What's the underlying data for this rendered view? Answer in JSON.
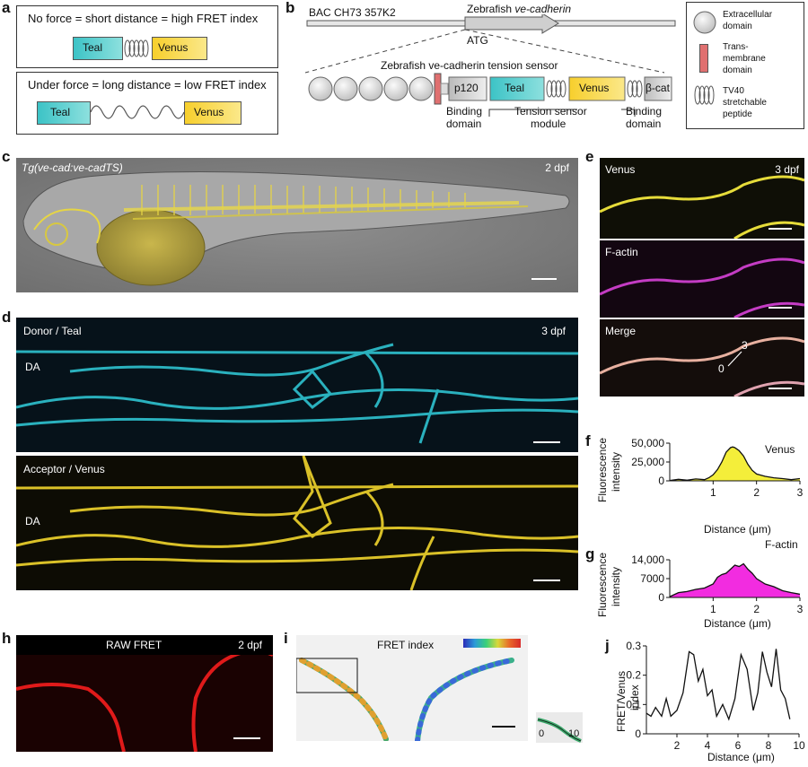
{
  "panel_labels": {
    "a": "a",
    "b": "b",
    "c": "c",
    "d": "d",
    "e": "e",
    "f": "f",
    "g": "g",
    "h": "h",
    "i": "i",
    "j": "j"
  },
  "panel_a": {
    "top_text": "No force = short distance = high FRET index",
    "bottom_text": "Under force = long distance = low FRET index",
    "teal": "Teal",
    "venus": "Venus"
  },
  "panel_b": {
    "bac_label": "BAC CH73 357K2",
    "gene_prefix": "Zebrafish ",
    "gene_name": "ve-cadherin",
    "atg": "ATG",
    "sensor_title": "Zebrafish ve-cadherin tension sensor",
    "p120": "p120",
    "teal": "Teal",
    "venus": "Venus",
    "bcat": "β-cat",
    "binding_left_1": "Binding",
    "binding_left_2": "domain",
    "module": "Tension sensor",
    "module_2": "module",
    "binding_right_1": "Binding",
    "binding_right_2": "domain"
  },
  "legend": {
    "extracellular_1": "Extracellular",
    "extracellular_2": "domain",
    "tm_1": "Trans-",
    "tm_2": "membrane",
    "tm_3": "domain",
    "tv40_1": "TV40",
    "tv40_2": "stretchable",
    "tv40_3": "peptide"
  },
  "panel_c": {
    "title": "Tg(ve-cad:ve-cadTS)",
    "stage": "2 dpf"
  },
  "panel_d": {
    "top_title": "Donor / Teal",
    "top_stage": "3 dpf",
    "top_da": "DA",
    "bottom_title": "Acceptor / Venus",
    "bottom_da": "DA"
  },
  "panel_e": {
    "venus": "Venus",
    "stage": "3 dpf",
    "factin": "F-actin",
    "merge": "Merge",
    "mark_0": "0",
    "mark_3": "3"
  },
  "panel_f": {
    "ylabel_1": "Fluorescence",
    "ylabel_2": "intensity",
    "xlabel": "Distance (μm)",
    "legend": "Venus",
    "yticks": [
      "0",
      "25,000",
      "50,000"
    ],
    "xticks": [
      "1",
      "2",
      "3"
    ]
  },
  "panel_g": {
    "ylabel_1": "Fluorescence",
    "ylabel_2": "intensity",
    "xlabel": "Distance (μm)",
    "legend": "F-actin",
    "yticks": [
      "0",
      "7000",
      "14,000"
    ],
    "xticks": [
      "1",
      "2",
      "3"
    ]
  },
  "panel_h": {
    "title": "RAW FRET",
    "stage": "2 dpf"
  },
  "panel_i": {
    "title": "FRET index",
    "inset_0": "0",
    "inset_10": "10"
  },
  "panel_j": {
    "ylabel_1": "FRET/Venus",
    "ylabel_2": "index",
    "xlabel": "Distance (μm)",
    "yticks": [
      "0",
      "0.1",
      "0.2",
      "0.3"
    ],
    "xticks": [
      "2",
      "4",
      "6",
      "8",
      "10"
    ]
  },
  "colors": {
    "teal": "#3cc3c6",
    "venus": "#f7cf2c",
    "tm": "#e07070",
    "venus_fill": "#f4ee3a",
    "factin_fill": "#f22ce0"
  },
  "chart_data": [
    {
      "type": "area",
      "ylabel": "Fluorescence intensity",
      "xlabel": "Distance (μm)",
      "series": [
        {
          "name": "Venus",
          "x": [
            0,
            0.2,
            0.4,
            0.6,
            0.8,
            0.9,
            1.0,
            1.1,
            1.2,
            1.3,
            1.4,
            1.45,
            1.5,
            1.55,
            1.6,
            1.7,
            1.8,
            1.9,
            2.0,
            2.2,
            2.4,
            2.6,
            2.8,
            3.0
          ],
          "values": [
            300,
            2000,
            800,
            2500,
            1500,
            4000,
            8000,
            15000,
            25000,
            38000,
            44000,
            45000,
            44000,
            42000,
            40000,
            33000,
            22000,
            14000,
            9000,
            6000,
            4000,
            3000,
            1500,
            3000
          ]
        }
      ],
      "xlim": [
        0,
        3
      ],
      "ylim": [
        0,
        50000
      ]
    },
    {
      "type": "area",
      "ylabel": "Fluorescence intensity",
      "xlabel": "Distance (μm)",
      "series": [
        {
          "name": "F-actin",
          "x": [
            0,
            0.2,
            0.4,
            0.6,
            0.8,
            1.0,
            1.1,
            1.2,
            1.3,
            1.4,
            1.5,
            1.6,
            1.7,
            1.8,
            1.9,
            2.0,
            2.2,
            2.4,
            2.6,
            2.8,
            3.0
          ],
          "values": [
            300,
            1800,
            2200,
            3000,
            3500,
            5000,
            7500,
            8500,
            9000,
            10500,
            12000,
            11500,
            12500,
            10500,
            9000,
            7000,
            5000,
            4000,
            2500,
            1800,
            1200
          ]
        }
      ],
      "xlim": [
        0,
        3
      ],
      "ylim": [
        0,
        14000
      ]
    },
    {
      "type": "line",
      "ylabel": "FRET/Venus index",
      "xlabel": "Distance (μm)",
      "series": [
        {
          "name": "",
          "x": [
            0,
            0.3,
            0.6,
            1.0,
            1.3,
            1.6,
            2.0,
            2.4,
            2.8,
            3.1,
            3.4,
            3.7,
            4.0,
            4.3,
            4.6,
            5.0,
            5.4,
            5.8,
            6.2,
            6.6,
            7.0,
            7.3,
            7.6,
            7.9,
            8.2,
            8.5,
            8.8,
            9.1,
            9.4
          ],
          "values": [
            0.07,
            0.06,
            0.09,
            0.06,
            0.12,
            0.06,
            0.08,
            0.14,
            0.28,
            0.27,
            0.18,
            0.22,
            0.13,
            0.15,
            0.06,
            0.1,
            0.05,
            0.12,
            0.27,
            0.22,
            0.08,
            0.14,
            0.28,
            0.21,
            0.16,
            0.29,
            0.15,
            0.12,
            0.05
          ]
        }
      ],
      "xlim": [
        0,
        10
      ],
      "ylim": [
        0,
        0.3
      ]
    }
  ]
}
